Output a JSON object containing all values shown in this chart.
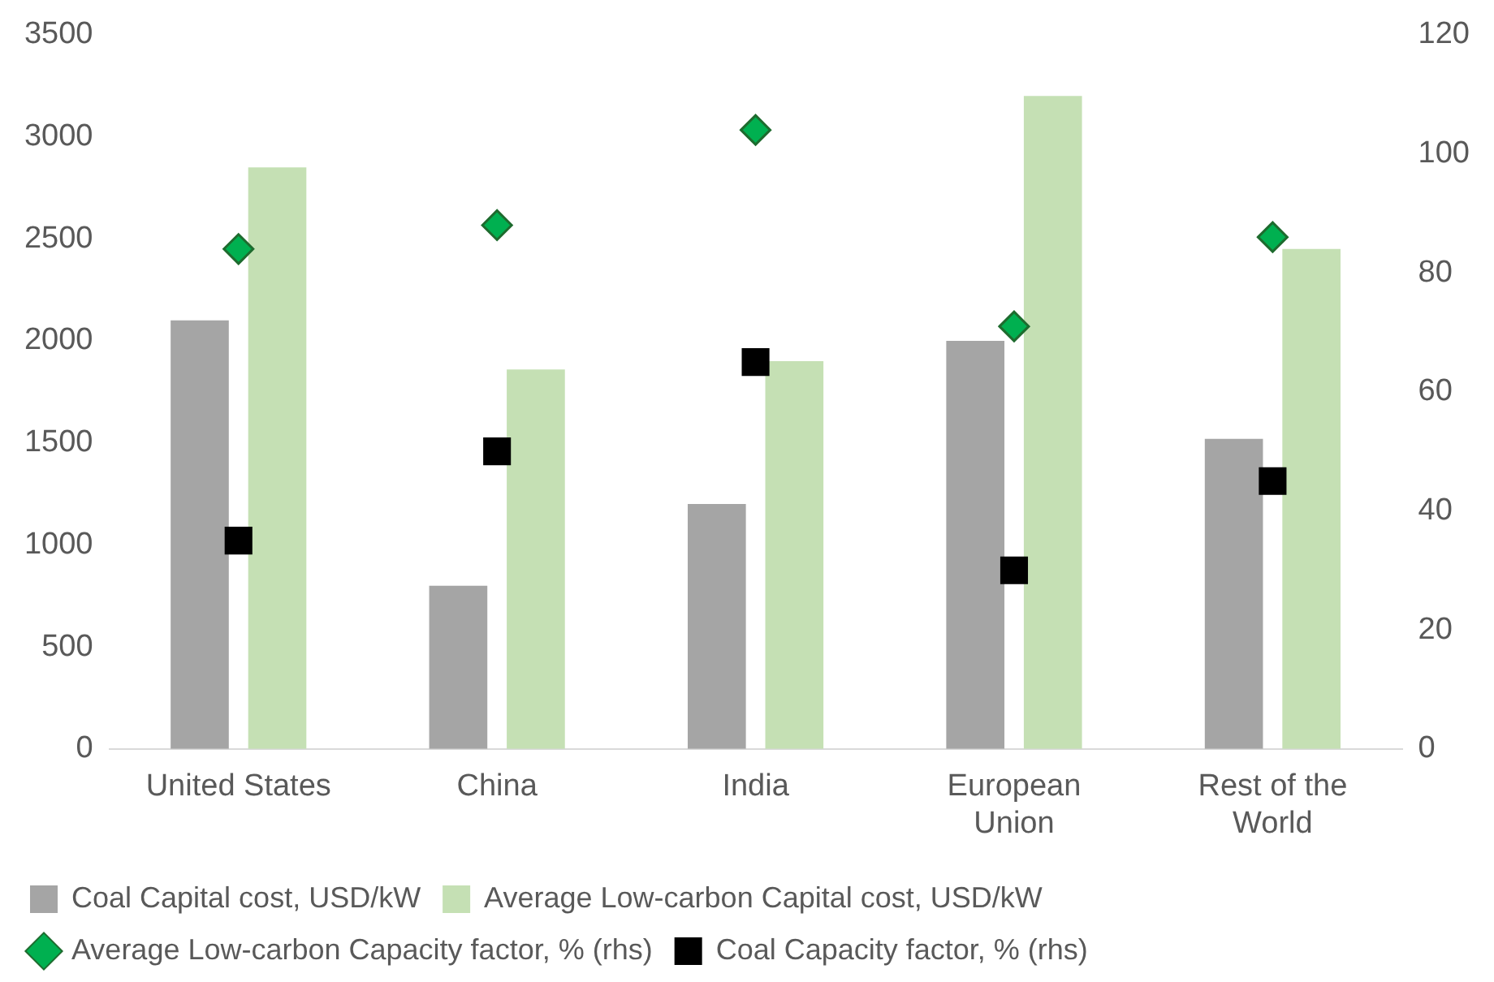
{
  "chart_data": {
    "type": "bar",
    "categories": [
      "United States",
      "China",
      "India",
      "European Union",
      "Rest of the World"
    ],
    "series": [
      {
        "name": "Coal Capital cost, USD/kW",
        "color": "#a5a5a5",
        "values": [
          2100,
          800,
          1200,
          2000,
          1520
        ]
      },
      {
        "name": "Average Low-carbon Capital cost, USD/kW",
        "color": "#c5e0b4",
        "values": [
          2850,
          1860,
          1900,
          3200,
          2450
        ]
      },
      {
        "name": "Average Low-carbon Capacity factor, % (rhs)",
        "type": "scatter",
        "marker": "diamond",
        "axis": "y2",
        "color": "#00b050",
        "x": [
          "United States",
          "China",
          "India",
          "European Union",
          "Rest of the World"
        ],
        "values": [
          84,
          88,
          104,
          71,
          86
        ]
      },
      {
        "name": "Coal Capacity factor, % (rhs)",
        "type": "scatter",
        "marker": "square",
        "axis": "y2",
        "color": "#000000",
        "x": [
          "United States",
          "China",
          "India",
          "European Union",
          "Rest of the World"
        ],
        "values": [
          35,
          50,
          65,
          30,
          45
        ]
      }
    ],
    "ylim": [
      0,
      3500
    ],
    "yticks": [
      0,
      500,
      1000,
      1500,
      2000,
      2500,
      3000,
      3500
    ],
    "y2lim": [
      0,
      120
    ],
    "y2ticks": [
      0,
      20,
      40,
      60,
      80,
      100,
      120
    ],
    "grid": false,
    "legend": "bottom"
  }
}
